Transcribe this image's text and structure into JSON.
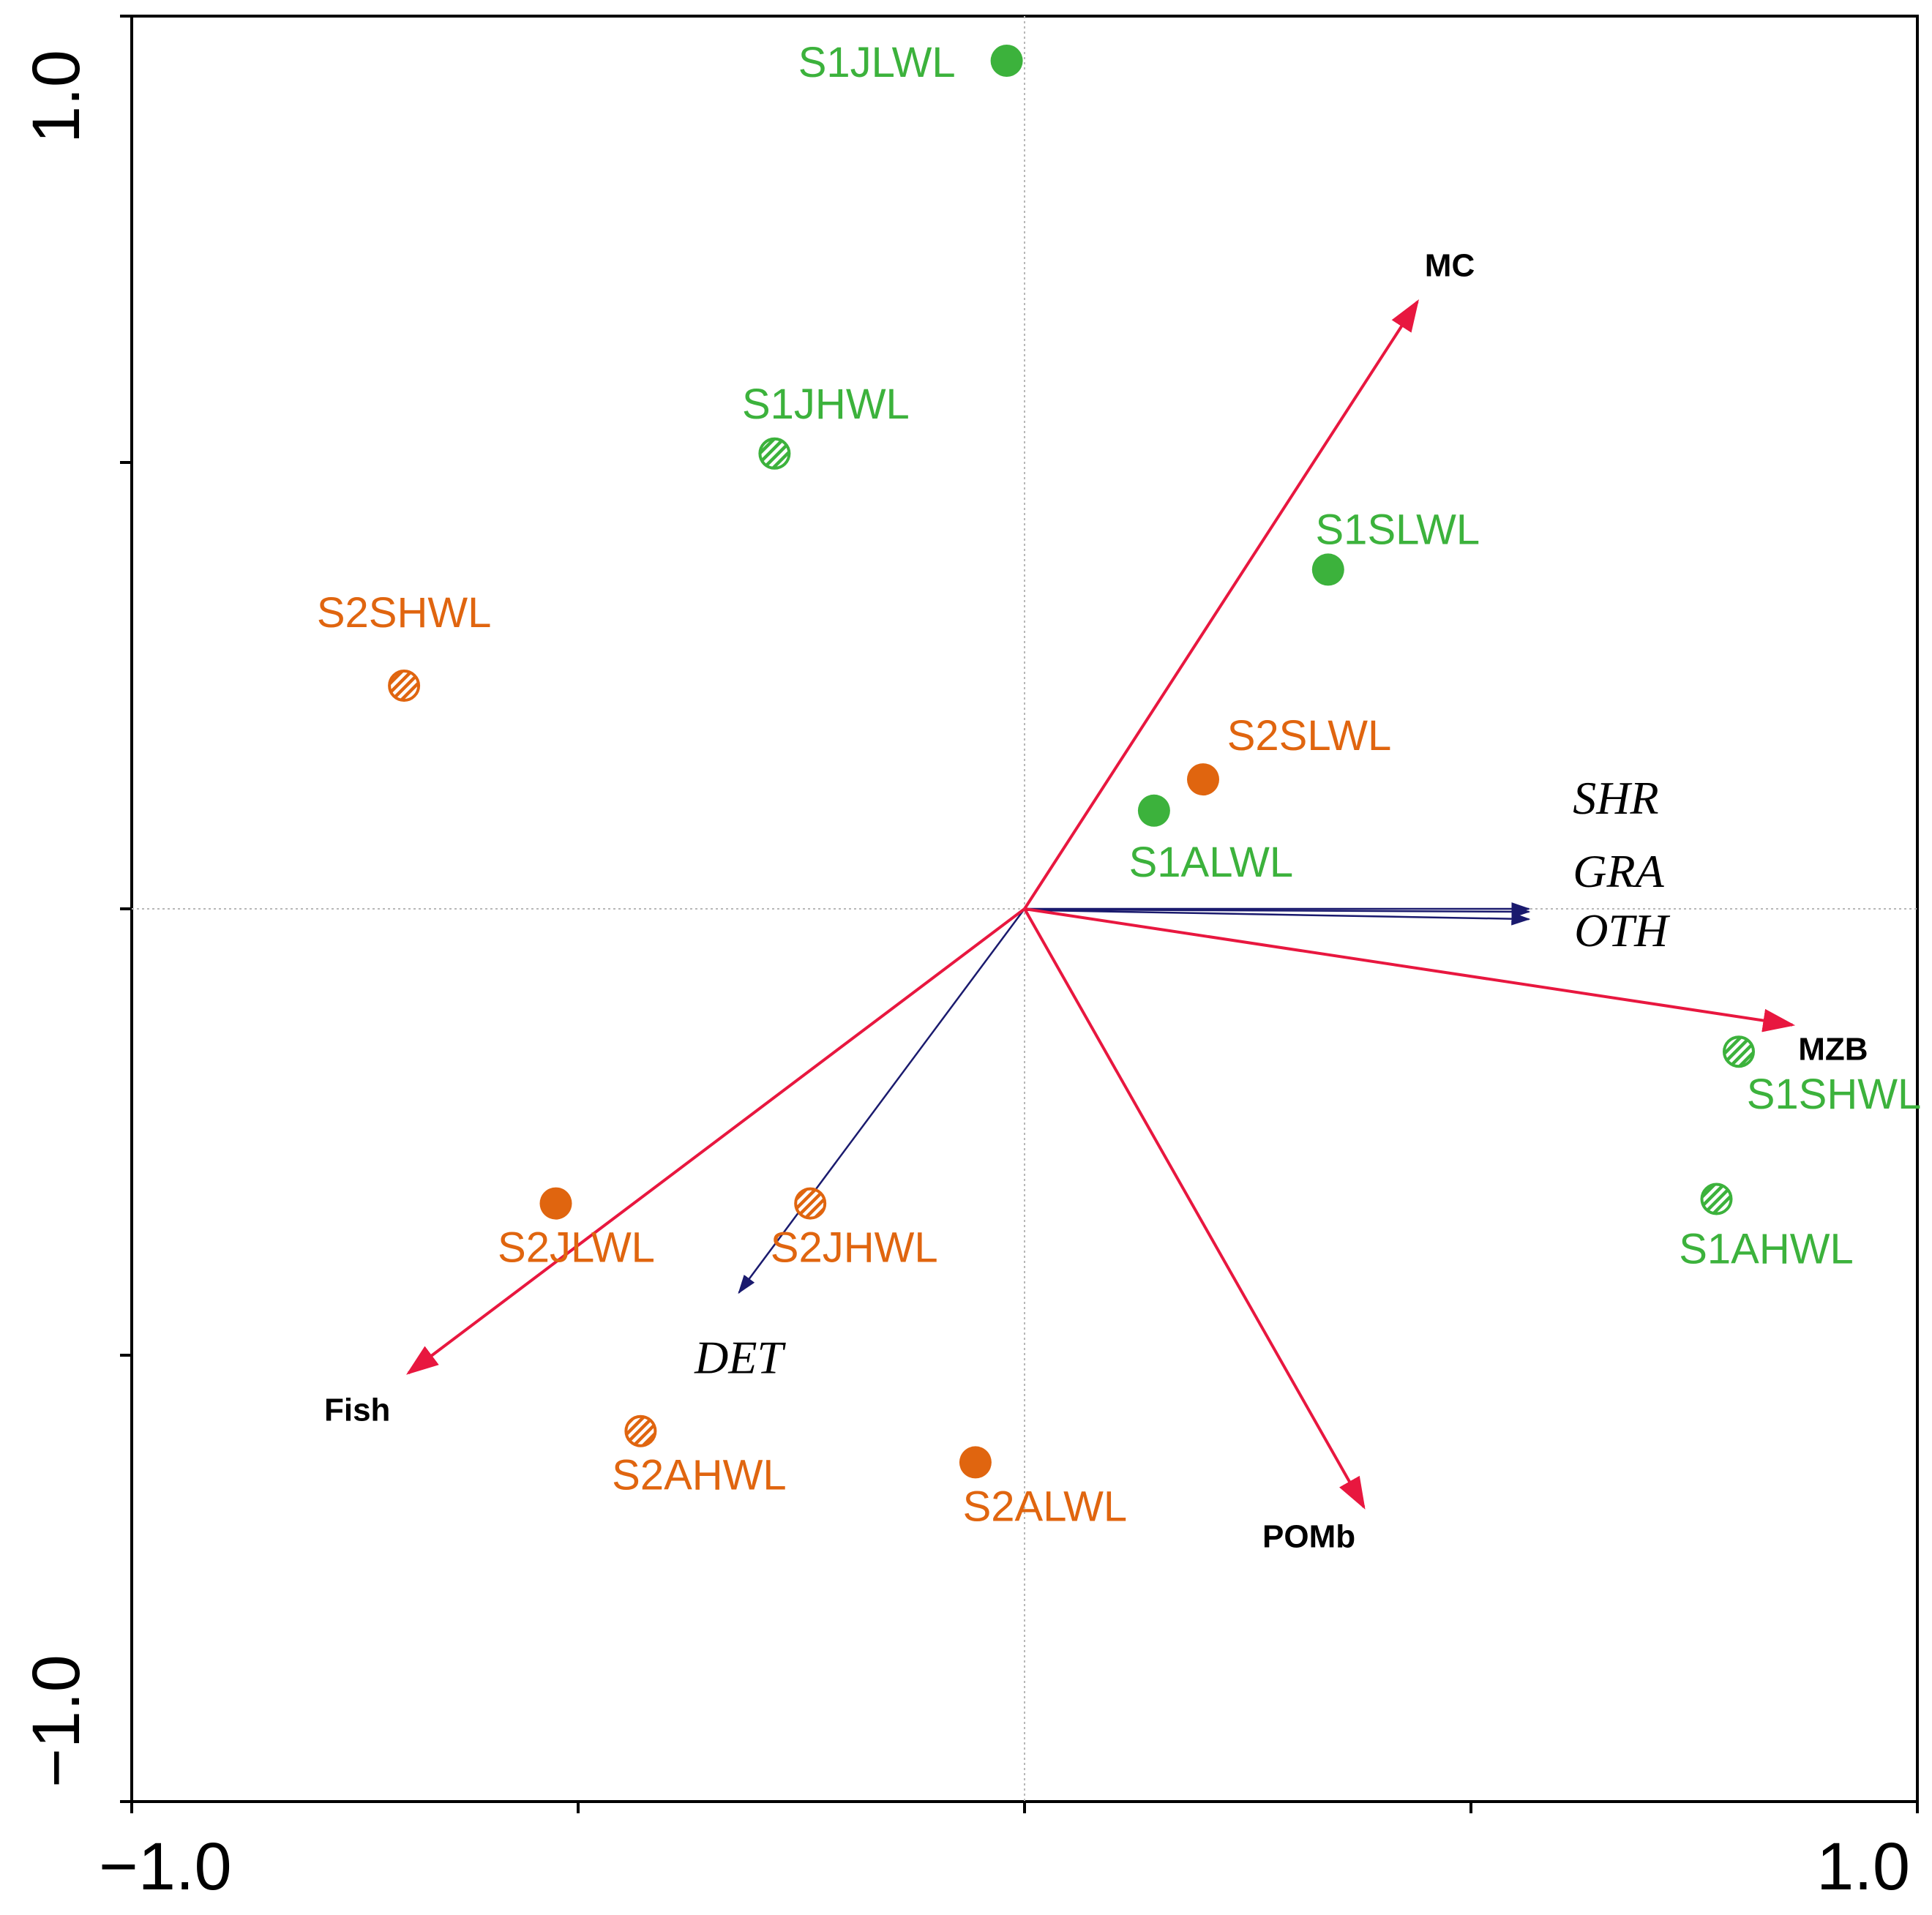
{
  "chart_data": {
    "type": "scatter",
    "title": "",
    "xlabel": "",
    "ylabel": "",
    "xlim": [
      -1.0,
      1.0
    ],
    "ylim": [
      -1.0,
      1.0
    ],
    "x_tick_labels": [
      {
        "value": -1.0,
        "label": "−1.0"
      },
      {
        "value": 1.0,
        "label": "1.0"
      }
    ],
    "y_tick_labels": [
      {
        "value": 1.0,
        "label": "1.0"
      },
      {
        "value": -1.0,
        "label": "−1.0"
      }
    ],
    "x_ticks": [
      -1.0,
      -0.5,
      0.0,
      0.5,
      1.0
    ],
    "y_ticks": [
      -1.0,
      -0.5,
      0.0,
      0.5,
      1.0
    ],
    "colors": {
      "S1": "#3cb23c",
      "S2": "#e0650f",
      "response_arrow": "#e8173f",
      "trophic_arrow": "#1a1a6e",
      "reference_line": "#b8b8b8",
      "frame": "#000000"
    },
    "sites": [
      {
        "name": "S1JLWL",
        "group": "S1",
        "fill": "solid",
        "x": -0.02,
        "y": 0.95,
        "label_pos": "left"
      },
      {
        "name": "S1JHWL",
        "group": "S1",
        "fill": "hatched",
        "x": -0.28,
        "y": 0.51,
        "label_pos": "above"
      },
      {
        "name": "S1SLWL",
        "group": "S1",
        "fill": "solid",
        "x": 0.34,
        "y": 0.38,
        "label_pos": "above"
      },
      {
        "name": "S1ALWL",
        "group": "S1",
        "fill": "solid",
        "x": 0.145,
        "y": 0.11,
        "label_pos": "below"
      },
      {
        "name": "S1SHWL",
        "group": "S1",
        "fill": "hatched",
        "x": 0.8,
        "y": -0.16,
        "label_pos": "below"
      },
      {
        "name": "S1AHWL",
        "group": "S1",
        "fill": "hatched",
        "x": 0.775,
        "y": -0.325,
        "label_pos": "below"
      },
      {
        "name": "S2SHWL",
        "group": "S2",
        "fill": "hatched",
        "x": -0.695,
        "y": 0.25,
        "label_pos": "above"
      },
      {
        "name": "S2SLWL",
        "group": "S2",
        "fill": "solid",
        "x": 0.2,
        "y": 0.145,
        "label_pos": "above"
      },
      {
        "name": "S2JLWL",
        "group": "S2",
        "fill": "solid",
        "x": -0.525,
        "y": -0.33,
        "label_pos": "below"
      },
      {
        "name": "S2JHWL",
        "group": "S2",
        "fill": "hatched",
        "x": -0.24,
        "y": -0.33,
        "label_pos": "below"
      },
      {
        "name": "S2AHWL",
        "group": "S2",
        "fill": "hatched",
        "x": -0.43,
        "y": -0.585,
        "label_pos": "below"
      },
      {
        "name": "S2ALWL",
        "group": "S2",
        "fill": "solid",
        "x": -0.055,
        "y": -0.62,
        "label_pos": "below"
      }
    ],
    "response_arrows": [
      {
        "name": "MC",
        "x": 0.44,
        "y": 0.68
      },
      {
        "name": "MZB",
        "x": 0.86,
        "y": -0.13
      },
      {
        "name": "POMb",
        "x": 0.38,
        "y": -0.67
      },
      {
        "name": "Fish",
        "x": -0.69,
        "y": -0.52
      }
    ],
    "trophic_arrows": [
      {
        "name": "SHR",
        "x": 0.565,
        "y": 0.0
      },
      {
        "name": "GRA",
        "x": 0.565,
        "y": 0.0
      },
      {
        "name": "OTH",
        "x": 0.565,
        "y": -0.005
      },
      {
        "name": "DET",
        "x": -0.32,
        "y": -0.43
      }
    ]
  }
}
